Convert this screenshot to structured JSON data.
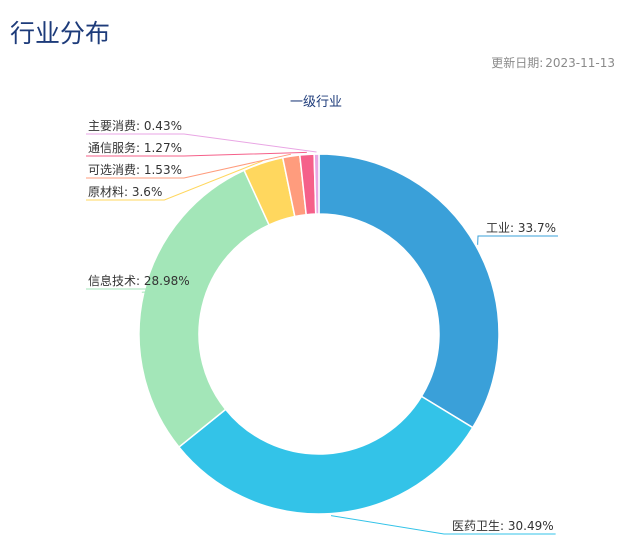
{
  "page": {
    "title": "行业分布",
    "update_label": "更新日期:",
    "update_date": "2023-11-13"
  },
  "chart_data": {
    "type": "pie",
    "variant": "donut",
    "title": "一级行业",
    "slices": [
      {
        "label": "工业",
        "value": 33.7,
        "color": "#3aa0d9"
      },
      {
        "label": "医药卫生",
        "value": 30.49,
        "color": "#33c3e8"
      },
      {
        "label": "信息技术",
        "value": 28.98,
        "color": "#a3e6b8"
      },
      {
        "label": "原材料",
        "value": 3.6,
        "color": "#ffd75e"
      },
      {
        "label": "可选消费",
        "value": 1.53,
        "color": "#ff9c7d"
      },
      {
        "label": "通信服务",
        "value": 1.27,
        "color": "#f5608a"
      },
      {
        "label": "主要消费",
        "value": 0.43,
        "color": "#e9a6e4"
      }
    ]
  }
}
